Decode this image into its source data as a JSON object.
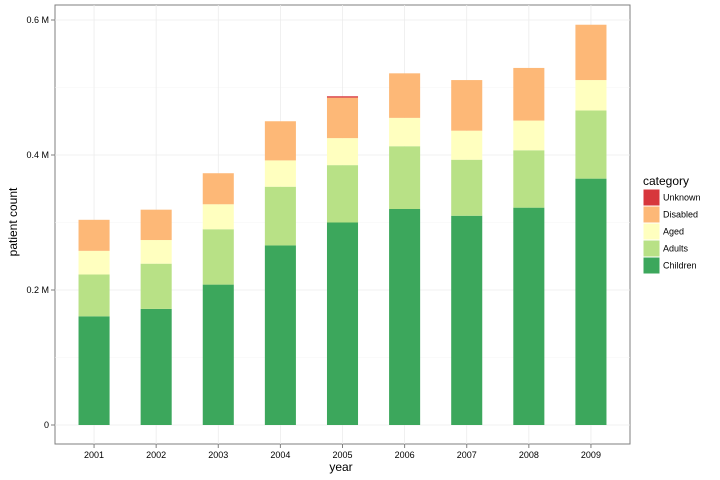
{
  "chart_data": {
    "type": "bar",
    "stacked": true,
    "xlabel": "year",
    "ylabel": "patient count",
    "categories": [
      "2001",
      "2002",
      "2003",
      "2004",
      "2005",
      "2006",
      "2007",
      "2008",
      "2009"
    ],
    "ylim": [
      0,
      0.61
    ],
    "yticks": [
      0,
      0.2,
      0.4,
      0.6
    ],
    "ytick_labels": [
      "0",
      "0.2 M",
      "0.4 M",
      "0.6 M"
    ],
    "unit": "million patients",
    "grid": true,
    "legend": {
      "title": "category",
      "position": "right"
    },
    "series": [
      {
        "name": "Children",
        "color": "#3ca75c",
        "values": [
          0.161,
          0.172,
          0.208,
          0.266,
          0.3,
          0.32,
          0.31,
          0.322,
          0.365
        ]
      },
      {
        "name": "Adults",
        "color": "#b8e186",
        "values": [
          0.062,
          0.067,
          0.082,
          0.087,
          0.085,
          0.093,
          0.083,
          0.085,
          0.101
        ]
      },
      {
        "name": "Aged",
        "color": "#ffffbf",
        "values": [
          0.035,
          0.035,
          0.037,
          0.039,
          0.04,
          0.042,
          0.043,
          0.044,
          0.045
        ]
      },
      {
        "name": "Disabled",
        "color": "#fdb877",
        "values": [
          0.046,
          0.045,
          0.046,
          0.058,
          0.06,
          0.066,
          0.075,
          0.078,
          0.082
        ]
      },
      {
        "name": "Unknown",
        "color": "#d7363c",
        "values": [
          0,
          0,
          0,
          0,
          0.002,
          0,
          0,
          0,
          0
        ]
      }
    ],
    "legend_order": [
      "Unknown",
      "Disabled",
      "Aged",
      "Adults",
      "Children"
    ]
  }
}
